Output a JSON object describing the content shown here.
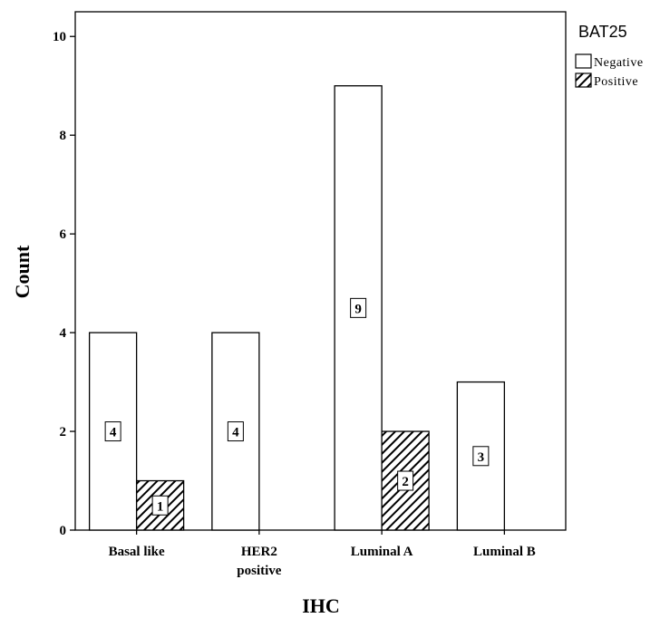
{
  "chart_data": {
    "type": "bar",
    "xlabel": "IHC",
    "ylabel": "Count",
    "ylim": [
      0,
      10.5
    ],
    "yticks": [
      0,
      2,
      4,
      6,
      8,
      10
    ],
    "categories": [
      {
        "lines": [
          "Basal like"
        ]
      },
      {
        "lines": [
          "HER2",
          "positive"
        ]
      },
      {
        "lines": [
          "Luminal A"
        ]
      },
      {
        "lines": [
          "Luminal B"
        ]
      }
    ],
    "legend": {
      "title": "BAT25",
      "position": "right"
    },
    "series": [
      {
        "name": "Negative",
        "pattern": "none",
        "values": [
          4,
          4,
          9,
          3
        ]
      },
      {
        "name": "Positive",
        "pattern": "hatch",
        "values": [
          1,
          0,
          2,
          0
        ]
      }
    ]
  }
}
